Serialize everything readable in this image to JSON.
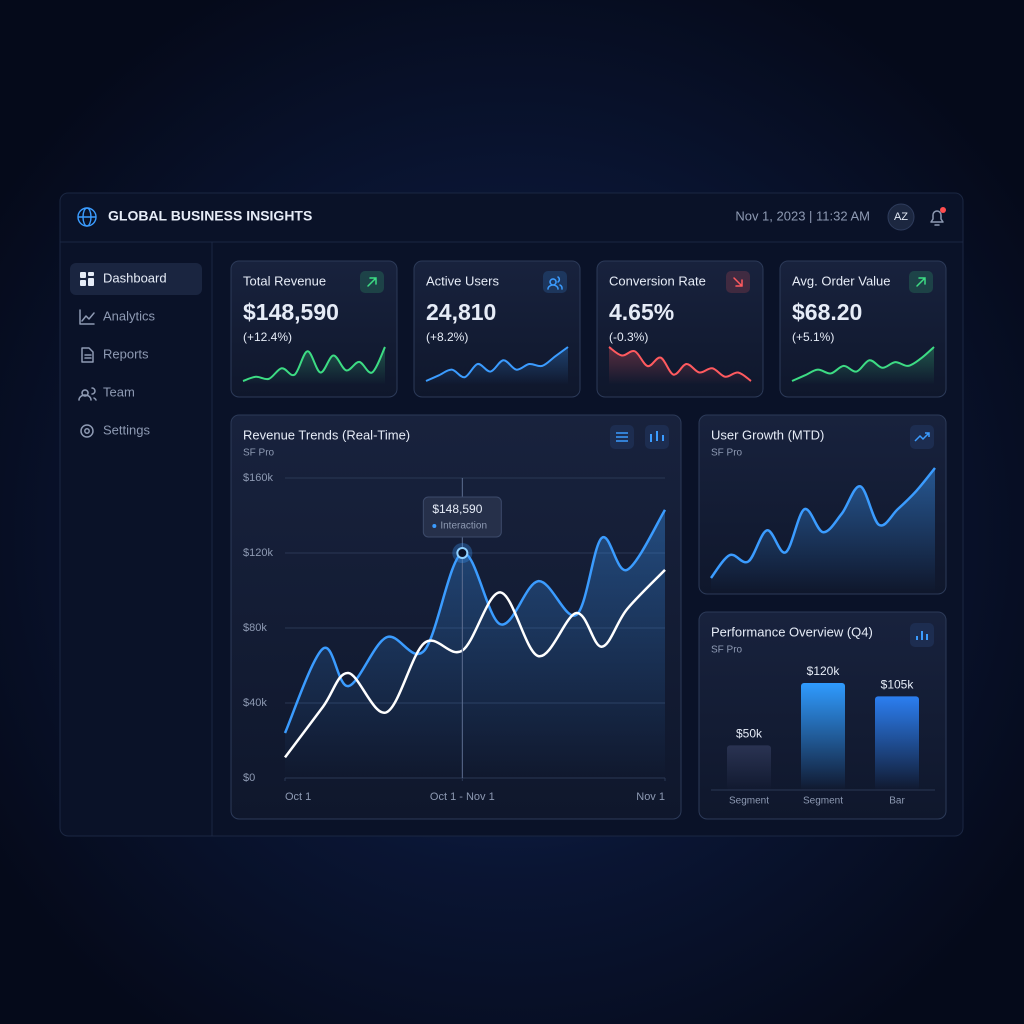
{
  "header": {
    "title": "GLOBAL BUSINESS INSIGHTS",
    "datetime": "Nov 1, 2023 | 11:32 AM",
    "avatar": "AZ"
  },
  "nav": [
    "Dashboard",
    "Analytics",
    "Reports",
    "Team",
    "Settings"
  ],
  "kpis": [
    {
      "label": "Total Revenue",
      "value": "$148,590",
      "change": "(+12.4%)",
      "icon": "up",
      "color": "#3ddc84",
      "sparkline": [
        8,
        10,
        9,
        14,
        11,
        22,
        12,
        20,
        13,
        17,
        12,
        24
      ]
    },
    {
      "label": "Active Users",
      "value": "24,810",
      "change": "(+8.2%)",
      "icon": "users",
      "color": "#3b9cff",
      "sparkline": [
        6,
        9,
        12,
        8,
        15,
        11,
        17,
        12,
        15,
        14,
        19,
        24
      ]
    },
    {
      "label": "Conversion Rate",
      "value": "4.65%",
      "change": "(-0.3%)",
      "icon": "down",
      "color": "#ff5a5f",
      "sparkline": [
        22,
        18,
        20,
        13,
        17,
        9,
        14,
        10,
        12,
        8,
        10,
        6
      ]
    },
    {
      "label": "Avg. Order Value",
      "value": "$68.20",
      "change": "(+5.1%)",
      "icon": "up",
      "color": "#3ddc84",
      "sparkline": [
        6,
        9,
        12,
        10,
        14,
        11,
        17,
        13,
        16,
        14,
        18,
        24
      ]
    }
  ],
  "revenue_chart": {
    "type": "line",
    "title": "Revenue Trends (Real-Time)",
    "subtitle": "SF Pro",
    "x": [
      0,
      3,
      5,
      8,
      11,
      14,
      17,
      20,
      23,
      25,
      27,
      30
    ],
    "xlim": [
      0,
      30
    ],
    "xticks": [
      {
        "value": 0,
        "label": "Oct 1"
      },
      {
        "value": 14,
        "label": "Oct 1 - Nov 1"
      },
      {
        "value": 30,
        "label": "Nov 1"
      }
    ],
    "ylim": [
      0,
      160000
    ],
    "yticks": [
      {
        "value": 0,
        "label": "$0"
      },
      {
        "value": 40000,
        "label": "$40k"
      },
      {
        "value": 80000,
        "label": "$80k"
      },
      {
        "value": 120000,
        "label": "$120k"
      },
      {
        "value": 160000,
        "label": "$160k"
      }
    ],
    "grid": true,
    "series": [
      {
        "color": "#3b9cff",
        "values": [
          24000,
          69000,
          49000,
          75000,
          68000,
          120000,
          82000,
          105000,
          87000,
          128000,
          111000,
          143000
        ]
      },
      {
        "color": "#ffffff",
        "values": [
          11000,
          38000,
          56000,
          35000,
          72000,
          68000,
          99000,
          65000,
          88000,
          70000,
          90000,
          111000
        ]
      }
    ],
    "annotation": {
      "label": "$148,590",
      "sublabel": "Interaction",
      "x": 14
    }
  },
  "user_growth": {
    "type": "area",
    "title": "User Growth (MTD)",
    "subtitle": "SF Pro",
    "color": "#3b9cff",
    "values": [
      20,
      45,
      38,
      72,
      48,
      95,
      70,
      90,
      120,
      78,
      95,
      115,
      140
    ]
  },
  "performance": {
    "type": "bar",
    "title": "Performance Overview (Q4)",
    "subtitle": "SF Pro",
    "categories": [
      "Segment",
      "Segment",
      "Bar"
    ],
    "values": [
      50000,
      120000,
      105000
    ],
    "value_labels": [
      "$50k",
      "$120k",
      "$105k"
    ],
    "colors": [
      "#2a3352",
      "#2f9bff",
      "#2b7ef0"
    ]
  }
}
